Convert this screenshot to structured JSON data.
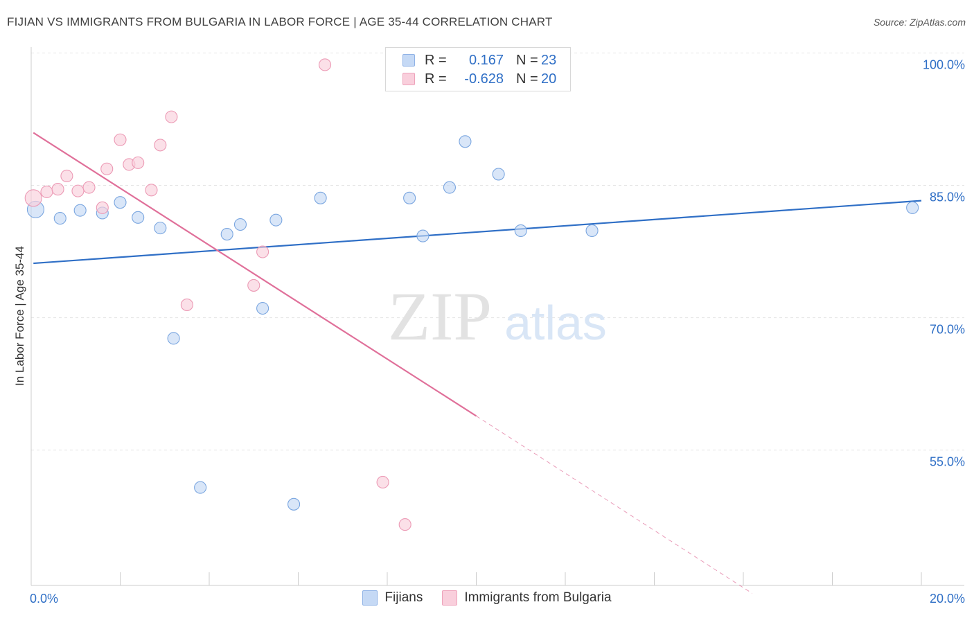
{
  "header": {
    "title": "FIJIAN VS IMMIGRANTS FROM BULGARIA IN LABOR FORCE | AGE 35-44 CORRELATION CHART",
    "source": "Source: ZipAtlas.com"
  },
  "legend": {
    "rows": [
      {
        "r_label": "R =",
        "r_value": "0.167",
        "n_label": "N =",
        "n_value": "23"
      },
      {
        "r_label": "R =",
        "r_value": "-0.628",
        "n_label": "N =",
        "n_value": "20"
      }
    ]
  },
  "watermark": {
    "zip": "ZIP",
    "atlas": "atlas"
  },
  "bottom_legend": {
    "fijians": "Fijians",
    "bulgaria": "Immigrants from Bulgaria"
  },
  "chart_data": {
    "type": "scatter",
    "title": "FIJIAN VS IMMIGRANTS FROM BULGARIA IN LABOR FORCE | AGE 35-44 CORRELATION CHART",
    "xlabel": "",
    "ylabel": "In Labor Force | Age 35-44",
    "xlim": [
      0,
      20
    ],
    "ylim": [
      41,
      102
    ],
    "x_tick_labels": [
      {
        "value": 0,
        "label": "0.0%"
      },
      {
        "value": 20,
        "label": "20.0%"
      }
    ],
    "y_tick_labels": [
      {
        "value": 100,
        "label": "100.0%"
      },
      {
        "value": 85,
        "label": "85.0%"
      },
      {
        "value": 70,
        "label": "70.0%"
      },
      {
        "value": 55,
        "label": "55.0%"
      }
    ],
    "x_minor_ticks": [
      2,
      4,
      6,
      8,
      10,
      12,
      14,
      16,
      18,
      20
    ],
    "grid": true,
    "colors": {
      "fijians_fill": "#c5d9f5",
      "fijians_stroke": "#7aa6e0",
      "fijians_line": "#2f6fc6",
      "bulgaria_fill": "#f9cfdc",
      "bulgaria_stroke": "#ec9ab5",
      "bulgaria_line": "#e0709a",
      "axis_text": "#2f6fc6"
    },
    "series": [
      {
        "name": "Fijians",
        "points": [
          [
            0.1,
            83.6
          ],
          [
            0.65,
            82.6
          ],
          [
            1.1,
            83.5
          ],
          [
            1.6,
            83.2
          ],
          [
            2.0,
            84.4
          ],
          [
            2.4,
            82.7
          ],
          [
            2.9,
            81.5
          ],
          [
            3.2,
            69.0
          ],
          [
            3.8,
            52.1
          ],
          [
            4.4,
            80.8
          ],
          [
            4.7,
            81.9
          ],
          [
            5.2,
            72.4
          ],
          [
            5.5,
            82.4
          ],
          [
            5.9,
            50.2
          ],
          [
            6.5,
            84.9
          ],
          [
            8.5,
            84.9
          ],
          [
            8.8,
            80.6
          ],
          [
            9.4,
            86.1
          ],
          [
            9.75,
            91.3
          ],
          [
            10.5,
            87.6
          ],
          [
            11.0,
            81.2
          ],
          [
            12.6,
            81.2
          ],
          [
            19.8,
            83.8
          ]
        ],
        "trend": {
          "x": [
            0.05,
            20.0
          ],
          "y": [
            77.5,
            84.6
          ]
        }
      },
      {
        "name": "Immigrants from Bulgaria",
        "points": [
          [
            0.05,
            84.9
          ],
          [
            0.35,
            85.6
          ],
          [
            0.6,
            85.9
          ],
          [
            0.8,
            87.4
          ],
          [
            1.05,
            85.7
          ],
          [
            1.3,
            86.1
          ],
          [
            1.6,
            83.8
          ],
          [
            1.7,
            88.2
          ],
          [
            2.0,
            91.5
          ],
          [
            2.2,
            88.7
          ],
          [
            2.4,
            88.9
          ],
          [
            2.7,
            85.8
          ],
          [
            2.9,
            90.9
          ],
          [
            3.15,
            94.1
          ],
          [
            3.5,
            72.8
          ],
          [
            5.0,
            75.0
          ],
          [
            5.2,
            78.8
          ],
          [
            6.6,
            100.0
          ],
          [
            7.9,
            52.7
          ],
          [
            8.4,
            47.9
          ]
        ],
        "trend": {
          "x": [
            0.05,
            10.0
          ],
          "y": [
            92.3,
            60.2
          ]
        },
        "trend_extension": {
          "x": [
            10.0,
            16.2
          ],
          "y": [
            60.2,
            40.1
          ]
        }
      }
    ]
  }
}
